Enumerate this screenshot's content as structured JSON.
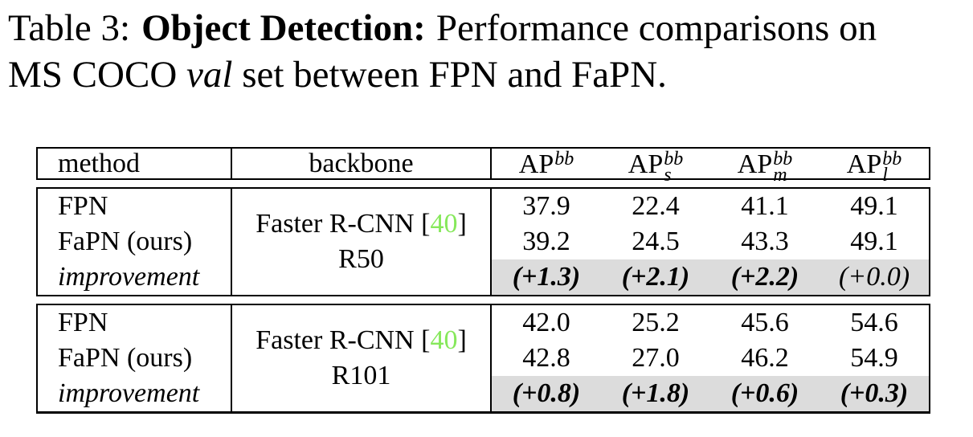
{
  "caption": {
    "prefix": "Table 3:",
    "title_bold": "Object Detection:",
    "line1_rest": "Performance comparisons on",
    "line2_pre": "MS COCO",
    "line2_italic": "val",
    "line2_post": "set between FPN and FaPN."
  },
  "table": {
    "headers": {
      "method": "method",
      "backbone": "backbone",
      "ap": [
        {
          "base": "AP",
          "sup": "bb",
          "sub": ""
        },
        {
          "base": "AP",
          "sup": "bb",
          "sub": "s"
        },
        {
          "base": "AP",
          "sup": "bb",
          "sub": "m"
        },
        {
          "base": "AP",
          "sup": "bb",
          "sub": "l"
        }
      ]
    },
    "blocks": [
      {
        "backbone": {
          "line1_pre": "Faster R-CNN [",
          "cite": "40",
          "line1_post": "]",
          "line2": "R50"
        },
        "methods": [
          "FPN",
          "FaPN (ours)",
          "improvement"
        ],
        "rows": [
          [
            "37.9",
            "22.4",
            "41.1",
            "49.1"
          ],
          [
            "39.2",
            "24.5",
            "43.3",
            "49.1"
          ],
          [
            "(+1.3)",
            "(+2.1)",
            "(+2.2)",
            "(+0.0)"
          ]
        ]
      },
      {
        "backbone": {
          "line1_pre": "Faster R-CNN [",
          "cite": "40",
          "line1_post": "]",
          "line2": "R101"
        },
        "methods": [
          "FPN",
          "FaPN (ours)",
          "improvement"
        ],
        "rows": [
          [
            "42.0",
            "25.2",
            "45.6",
            "54.6"
          ],
          [
            "42.8",
            "27.0",
            "46.2",
            "54.9"
          ],
          [
            "(+0.8)",
            "(+1.8)",
            "(+0.6)",
            "(+0.3)"
          ]
        ]
      }
    ],
    "colors": {
      "citation_green": "#86E85B",
      "shade_gray": "#DCDCDC"
    }
  }
}
